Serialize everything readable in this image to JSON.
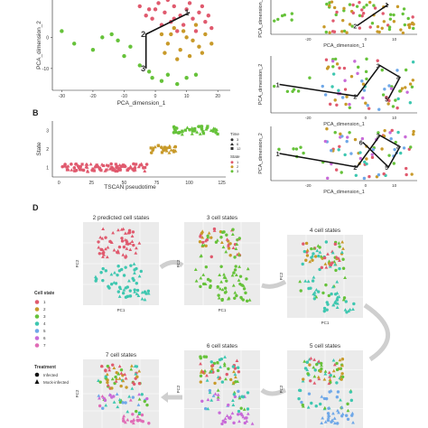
{
  "panels": {
    "b_label": "B",
    "d_label": "D"
  },
  "chart_data": [
    {
      "id": "A-main",
      "type": "scatter",
      "xlabel": "PCA_dimension_1",
      "ylabel": "PCA_dimension_2",
      "xticks": [
        "-30",
        "-20",
        "-10",
        "0",
        "10",
        "20"
      ],
      "yticks": [
        "0",
        "-10"
      ],
      "xlim": [
        -33,
        24
      ],
      "ylim": [
        -17,
        12
      ],
      "path_labels": [
        "1",
        "2",
        "3"
      ],
      "path": [
        [
          11,
          8
        ],
        [
          -3,
          1
        ],
        [
          -3,
          -10
        ]
      ],
      "series": [
        {
          "color": "#e05a6e",
          "points": [
            [
              -5,
              10
            ],
            [
              -2,
              9
            ],
            [
              1,
              11
            ],
            [
              3,
              8
            ],
            [
              6,
              10
            ],
            [
              8,
              7
            ],
            [
              10,
              9
            ],
            [
              12,
              6
            ],
            [
              14,
              8
            ],
            [
              16,
              5
            ],
            [
              5,
              5
            ],
            [
              2,
              4
            ],
            [
              9,
              4
            ],
            [
              13,
              2
            ],
            [
              17,
              7
            ],
            [
              -1,
              6
            ],
            [
              7,
              2
            ],
            [
              11,
              11
            ],
            [
              4,
              12
            ],
            [
              15,
              10
            ],
            [
              18,
              3
            ],
            [
              0,
              9
            ],
            [
              -3,
              7
            ],
            [
              6,
              6
            ]
          ]
        },
        {
          "color": "#c89a2a",
          "points": [
            [
              2,
              1
            ],
            [
              6,
              3
            ],
            [
              10,
              0
            ],
            [
              4,
              -2
            ],
            [
              8,
              -4
            ],
            [
              12,
              -1
            ],
            [
              14,
              -3
            ],
            [
              16,
              1
            ],
            [
              3,
              -5
            ],
            [
              7,
              -7
            ],
            [
              11,
              -6
            ],
            [
              15,
              -5
            ],
            [
              18,
              -2
            ],
            [
              5,
              1
            ],
            [
              9,
              2
            ],
            [
              13,
              4
            ]
          ]
        },
        {
          "color": "#66c23a",
          "points": [
            [
              -30,
              2
            ],
            [
              -26,
              -2
            ],
            [
              -20,
              -4
            ],
            [
              -14,
              1
            ],
            [
              -10,
              -6
            ],
            [
              -8,
              -3
            ],
            [
              -5,
              -9
            ],
            [
              -2,
              -11
            ],
            [
              -1,
              -13
            ],
            [
              2,
              -14
            ],
            [
              4,
              -12
            ],
            [
              7,
              -15
            ],
            [
              10,
              -13
            ],
            [
              13,
              -12
            ],
            [
              -12,
              -1
            ],
            [
              -17,
              0
            ]
          ]
        }
      ]
    },
    {
      "id": "B",
      "type": "scatter",
      "xlabel": "TSCAN pseudotime",
      "ylabel": "State",
      "xticks": [
        "0",
        "25",
        "50",
        "75",
        "100",
        "125"
      ],
      "yticks": [
        "1",
        "2",
        "3"
      ],
      "xlim": [
        -5,
        128
      ],
      "ylim": [
        0.5,
        3.5
      ],
      "legend_time_title": "Time",
      "legend_time_items": [
        "3",
        "6",
        "12"
      ],
      "legend_state_title": "State",
      "legend_state_items": [
        "1",
        "2",
        "3"
      ],
      "state_colors": [
        "#e05a6e",
        "#c89a2a",
        "#66c23a"
      ],
      "bands": [
        {
          "state": 1,
          "x_range": [
            2,
            68
          ],
          "count": 90
        },
        {
          "state": 2,
          "x_range": [
            70,
            90
          ],
          "count": 24
        },
        {
          "state": 3,
          "x_range": [
            88,
            122
          ],
          "count": 44
        }
      ]
    },
    {
      "id": "C",
      "type": "scatter",
      "xlabel": "PCA_dimension_1",
      "ylabel": "PCA_dimension_2",
      "xticks": [
        "-20",
        "0",
        "10"
      ],
      "panels": [
        {
          "path_labels": [
            "1",
            "2"
          ],
          "path": [
            [
              8,
              9
            ],
            [
              -3,
              -6
            ]
          ]
        },
        {
          "path_labels": [
            "1",
            "2",
            "3",
            "4",
            "5"
          ],
          "path": [
            [
              -30,
              0
            ],
            [
              -3,
              -5
            ],
            [
              5,
              8
            ],
            [
              12,
              3
            ],
            [
              8,
              -6
            ]
          ]
        },
        {
          "path_labels": [
            "1",
            "2",
            "3",
            "4",
            "5",
            "6"
          ],
          "path": [
            [
              -30,
              0
            ],
            [
              -3,
              -6
            ],
            [
              5,
              8
            ],
            [
              12,
              3
            ],
            [
              8,
              -6
            ],
            [
              -1,
              5
            ]
          ]
        }
      ]
    },
    {
      "id": "D",
      "type": "scatter",
      "xlabel": "PC1",
      "ylabel": "PC2",
      "panels": [
        {
          "title": "2 predicted cell states",
          "n_states": 2
        },
        {
          "title": "3 cell states",
          "n_states": 3
        },
        {
          "title": "4 cell states",
          "n_states": 4
        },
        {
          "title": "5 cell states",
          "n_states": 5
        },
        {
          "title": "6 cell states",
          "n_states": 6
        },
        {
          "title": "7 cell states",
          "n_states": 7
        }
      ],
      "legend_state_title": "Cell state",
      "legend_state_items": [
        "1",
        "2",
        "3",
        "4",
        "5",
        "6",
        "7"
      ],
      "state_colors": [
        "#e05a6e",
        "#c89a2a",
        "#66c23a",
        "#3ec7b0",
        "#6fa8e8",
        "#c86bd8",
        "#e06cb6"
      ],
      "legend_treatment_title": "Treatment",
      "legend_treatment_items": [
        "Infected",
        "Mock-infected"
      ]
    }
  ]
}
